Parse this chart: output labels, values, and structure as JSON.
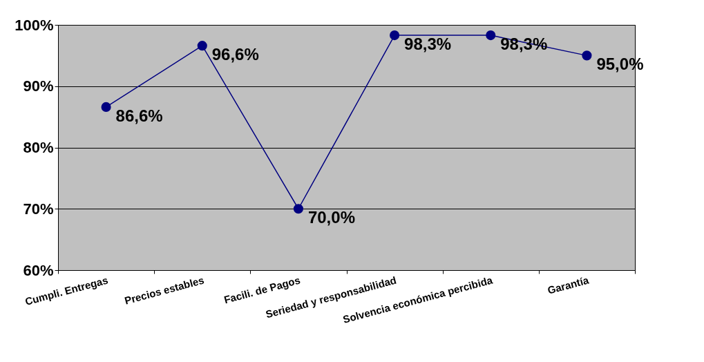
{
  "chart_data": {
    "type": "line",
    "categories": [
      "Cumpli. Entregas",
      "Precios estables",
      "Facili. de Pagos",
      "Seriedad y responsabilidad",
      "Solvencia económica percibida",
      "Garantía"
    ],
    "series": [
      {
        "color": "#000080",
        "values": [
          86.6,
          96.6,
          70.0,
          98.3,
          98.3,
          95.0
        ],
        "value_labels": [
          "86,6%",
          "96,6%",
          "70,0%",
          "98,3%",
          "98,3%",
          "95,0%"
        ]
      }
    ],
    "ylim": [
      60,
      100
    ],
    "yticks": [
      {
        "value": 60,
        "label": "60%"
      },
      {
        "value": 70,
        "label": "70%"
      },
      {
        "value": 80,
        "label": "80%"
      },
      {
        "value": 90,
        "label": "90%"
      },
      {
        "value": 100,
        "label": "100%"
      }
    ],
    "grid": "y",
    "marker": "circle",
    "line_style": "solid"
  }
}
